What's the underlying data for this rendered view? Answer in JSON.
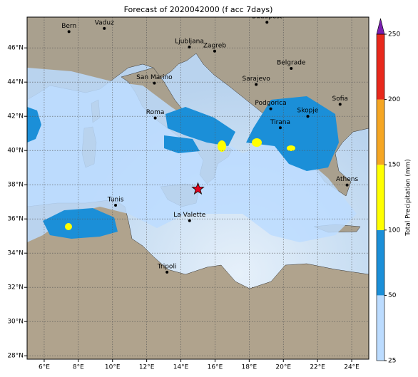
{
  "map": {
    "title": "Forecast of 2020042000 (f acc 7days)",
    "lonlim": [
      5,
      25
    ],
    "latlim": [
      27.8,
      47.8
    ],
    "grid": true,
    "lonticks": [
      {
        "value": 6,
        "label": "6°E"
      },
      {
        "value": 8,
        "label": "8°E"
      },
      {
        "value": 10,
        "label": "10°E"
      },
      {
        "value": 12,
        "label": "12°E"
      },
      {
        "value": 14,
        "label": "14°E"
      },
      {
        "value": 16,
        "label": "16°E"
      },
      {
        "value": 18,
        "label": "18°E"
      },
      {
        "value": 20,
        "label": "20°E"
      },
      {
        "value": 22,
        "label": "22°E"
      },
      {
        "value": 24,
        "label": "24°E"
      }
    ],
    "latticks": [
      {
        "value": 28,
        "label": "28°N"
      },
      {
        "value": 30,
        "label": "30°N"
      },
      {
        "value": 32,
        "label": "32°N"
      },
      {
        "value": 34,
        "label": "34°N"
      },
      {
        "value": 36,
        "label": "36°N"
      },
      {
        "value": 38,
        "label": "38°N"
      },
      {
        "value": 40,
        "label": "40°N"
      },
      {
        "value": 42,
        "label": "42°N"
      },
      {
        "value": 44,
        "label": "44°N"
      },
      {
        "value": 46,
        "label": "46°N"
      }
    ],
    "cities": [
      {
        "name": "Bern",
        "lon": 7.45,
        "lat": 46.95
      },
      {
        "name": "Vaduz",
        "lon": 9.52,
        "lat": 47.14
      },
      {
        "name": "Budapest",
        "lon": 19.04,
        "lat": 47.5
      },
      {
        "name": "Ljubljana",
        "lon": 14.5,
        "lat": 46.05
      },
      {
        "name": "Zagreb",
        "lon": 15.98,
        "lat": 45.81
      },
      {
        "name": "Belgrade",
        "lon": 20.46,
        "lat": 44.8
      },
      {
        "name": "San Marino",
        "lon": 12.45,
        "lat": 43.94
      },
      {
        "name": "Sarajevo",
        "lon": 18.41,
        "lat": 43.86
      },
      {
        "name": "Podgorica",
        "lon": 19.26,
        "lat": 42.44
      },
      {
        "name": "Sofia",
        "lon": 23.32,
        "lat": 42.7
      },
      {
        "name": "Skopje",
        "lon": 21.43,
        "lat": 42.0
      },
      {
        "name": "Roma",
        "lon": 12.5,
        "lat": 41.9
      },
      {
        "name": "Tirana",
        "lon": 19.82,
        "lat": 41.33
      },
      {
        "name": "Athens",
        "lon": 23.73,
        "lat": 37.98
      },
      {
        "name": "Tunis",
        "lon": 10.18,
        "lat": 36.8
      },
      {
        "name": "La Valette",
        "lon": 14.51,
        "lat": 35.9
      },
      {
        "name": "Tripoli",
        "lon": 13.19,
        "lat": 32.89
      }
    ],
    "marker": {
      "lon": 15.0,
      "lat": 37.75,
      "color": "#e3001b"
    },
    "colorbar": {
      "label": "Total Precipitation (mm)",
      "levels": [
        25,
        50,
        100,
        150,
        200,
        250
      ],
      "colors": [
        "#bcdcff",
        "#1b8fd8",
        "#ffff00",
        "#f5a623",
        "#e8291c"
      ],
      "extend_color": "#7a1fb0"
    }
  }
}
